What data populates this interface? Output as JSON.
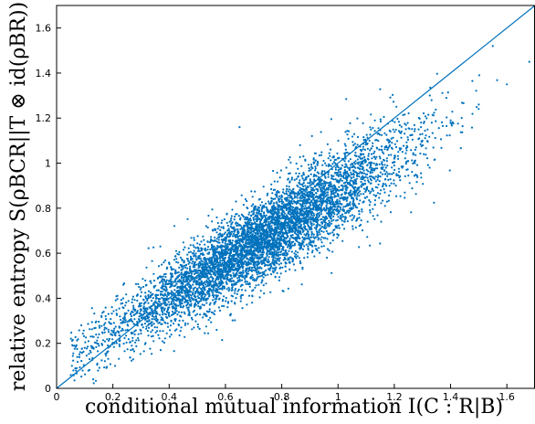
{
  "chart_data": {
    "type": "scatter",
    "title": "",
    "xlabel": "conditional mutual information I(C : R|B)",
    "ylabel": "relative entropy S(ρBCR||T ⊗ id(ρBR))",
    "xlim": [
      0,
      1.7
    ],
    "ylim": [
      0,
      1.7
    ],
    "x_ticks": [
      "0",
      "0.2",
      "0.4",
      "0.6",
      "0.8",
      "1",
      "1.2",
      "1.4",
      "1.6"
    ],
    "y_ticks": [
      "0",
      "0.2",
      "0.4",
      "0.6",
      "0.8",
      "1",
      "1.2",
      "1.4",
      "1.6"
    ],
    "grid": false,
    "legend": "none",
    "reference_line": {
      "x": [
        0,
        1.7
      ],
      "y": [
        0,
        1.7
      ]
    },
    "point_color": "#0072BD",
    "line_color": "#0072BD",
    "point_count": 6000,
    "cloud_description": "dense cloud roughly along y = 0.1 + 0.77x, spread about 0.09, x from about 0.05 to 1.7",
    "sample_points": [
      [
        0.1,
        0.18
      ],
      [
        0.2,
        0.25
      ],
      [
        0.3,
        0.33
      ],
      [
        0.4,
        0.42
      ],
      [
        0.5,
        0.5
      ],
      [
        0.6,
        0.58
      ],
      [
        0.7,
        0.65
      ],
      [
        0.8,
        0.73
      ],
      [
        0.9,
        0.8
      ],
      [
        1.0,
        0.88
      ],
      [
        1.1,
        0.95
      ],
      [
        1.2,
        1.02
      ],
      [
        1.3,
        1.1
      ],
      [
        1.4,
        1.18
      ],
      [
        1.5,
        1.26
      ],
      [
        1.6,
        1.35
      ],
      [
        1.68,
        1.45
      ],
      [
        0.65,
        1.16
      ],
      [
        1.55,
        1.52
      ],
      [
        0.13,
        0.04
      ]
    ]
  }
}
